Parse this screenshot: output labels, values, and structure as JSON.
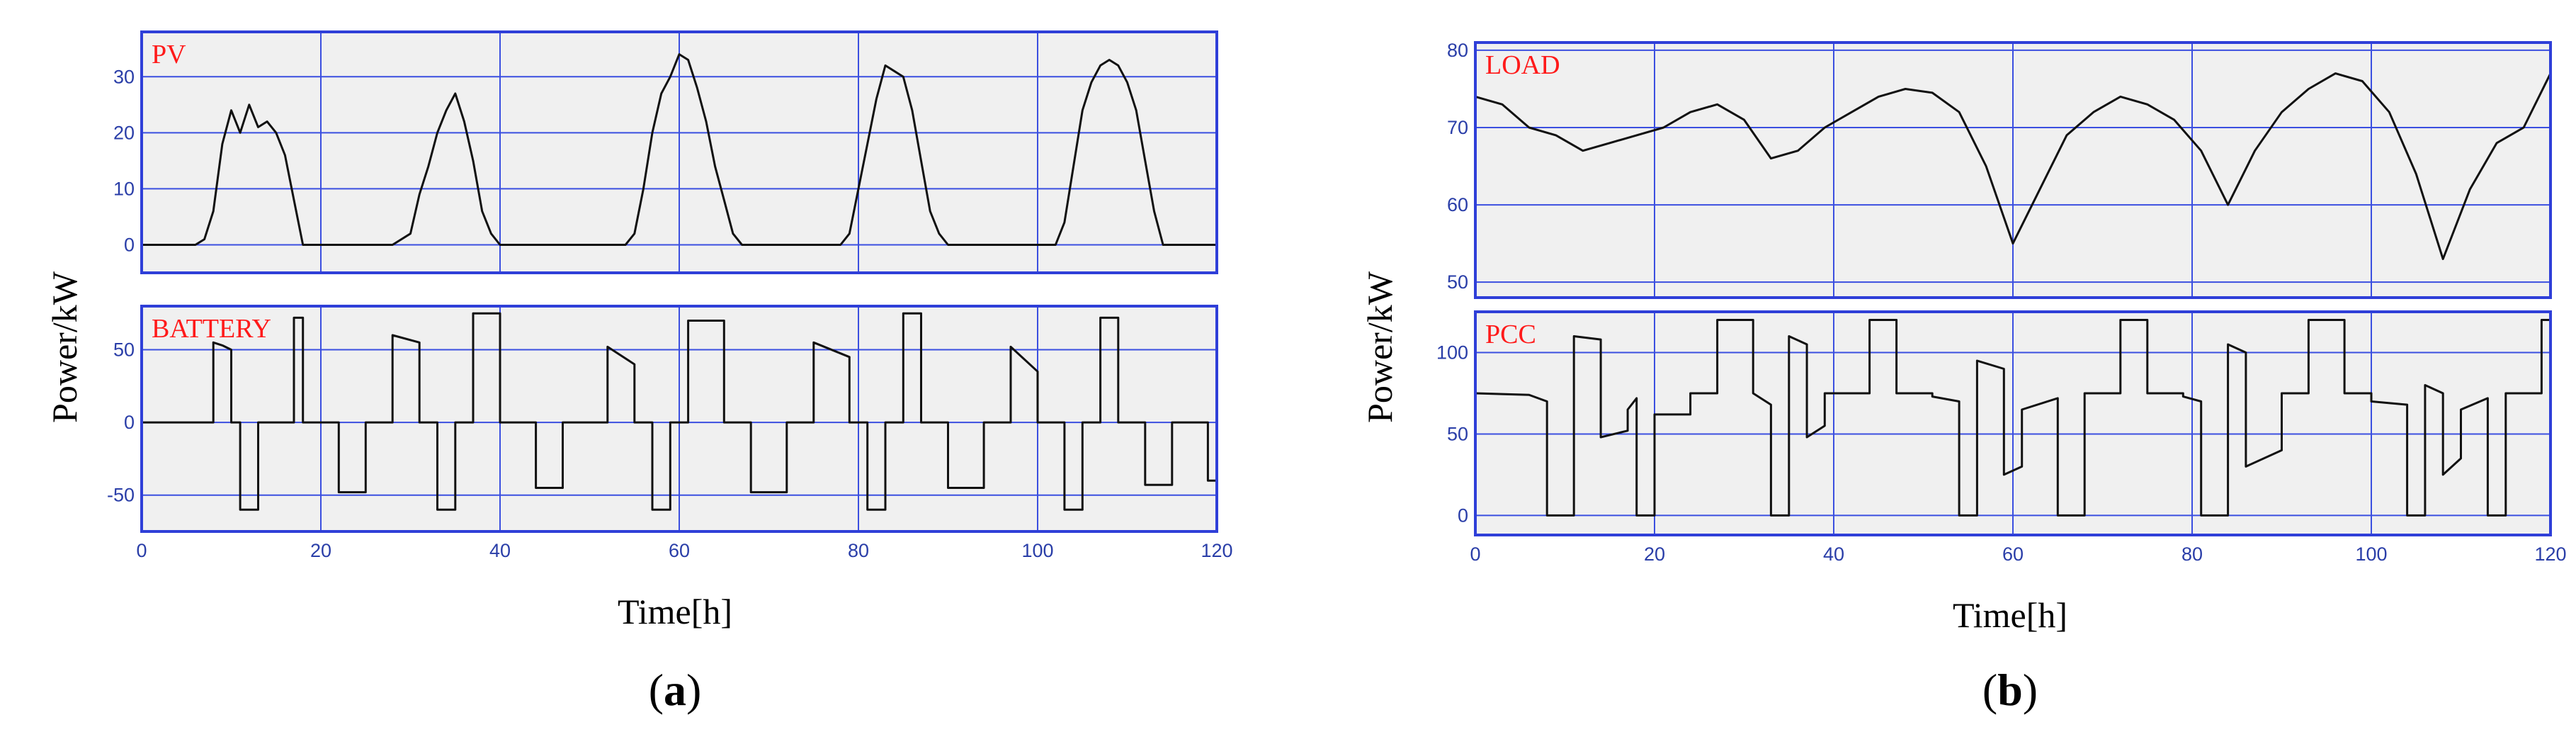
{
  "figure": {
    "panels": [
      {
        "id": "a",
        "label_open": "(",
        "label_letter": "a",
        "label_close": ")",
        "ylabel": "Power/kW",
        "xlabel": "Time[h]"
      },
      {
        "id": "b",
        "label_open": "(",
        "label_letter": "b",
        "label_close": ")",
        "ylabel": "Power/kW",
        "xlabel": "Time[h]"
      }
    ]
  },
  "colors": {
    "frame": "#2f3fd8",
    "grid": "#3b4fe0",
    "plot_bg": "#f0f0f0",
    "trace": "#111111",
    "label": "#ff1a1a",
    "tick": "#2a3ea8"
  },
  "chart_data": [
    {
      "type": "line",
      "panel": "a",
      "name": "PV",
      "xlim": [
        0,
        120
      ],
      "ylim": [
        -5,
        38
      ],
      "yticks": [
        0,
        10,
        20,
        30
      ],
      "xticks": [],
      "grid": true,
      "x": [
        0,
        6,
        7,
        8,
        9,
        10,
        11,
        12,
        13,
        14,
        15,
        16,
        17,
        18,
        20,
        28,
        30,
        31,
        32,
        33,
        34,
        35,
        36,
        37,
        38,
        39,
        40,
        41,
        42,
        43,
        52,
        54,
        55,
        56,
        57,
        58,
        59,
        60,
        61,
        62,
        63,
        64,
        65,
        66,
        67,
        76,
        78,
        79,
        80,
        81,
        82,
        83,
        84,
        85,
        86,
        87,
        88,
        89,
        90,
        91,
        100,
        102,
        103,
        104,
        105,
        106,
        107,
        108,
        109,
        110,
        111,
        112,
        113,
        114,
        120
      ],
      "y": [
        0,
        0,
        1,
        6,
        18,
        24,
        20,
        25,
        21,
        22,
        20,
        16,
        8,
        0,
        0,
        0,
        2,
        9,
        14,
        20,
        24,
        27,
        22,
        15,
        6,
        2,
        0,
        0,
        0,
        0,
        0,
        0,
        2,
        10,
        20,
        27,
        30,
        34,
        33,
        28,
        22,
        14,
        8,
        2,
        0,
        0,
        0,
        2,
        10,
        18,
        26,
        32,
        31,
        30,
        24,
        15,
        6,
        2,
        0,
        0,
        0,
        0,
        4,
        14,
        24,
        29,
        32,
        33,
        32,
        29,
        24,
        15,
        6,
        0,
        0
      ]
    },
    {
      "type": "line",
      "panel": "a",
      "name": "BATTERY",
      "xlim": [
        0,
        120
      ],
      "ylim": [
        -75,
        80
      ],
      "yticks": [
        -50,
        0,
        50
      ],
      "xticks": [
        0,
        20,
        40,
        60,
        80,
        100,
        120
      ],
      "grid": true,
      "x": [
        0,
        8,
        8,
        9,
        10,
        10,
        11,
        11,
        13,
        13,
        17,
        17,
        18,
        18,
        22,
        22,
        25,
        25,
        28,
        28,
        31,
        31,
        33,
        33,
        35,
        35,
        37,
        37,
        40,
        40,
        44,
        44,
        47,
        47,
        52,
        52,
        55,
        55,
        57,
        57,
        59,
        59,
        61,
        61,
        65,
        65,
        68,
        68,
        72,
        72,
        75,
        75,
        79,
        79,
        81,
        81,
        83,
        83,
        85,
        85,
        87,
        87,
        90,
        90,
        94,
        94,
        97,
        97,
        100,
        100,
        103,
        103,
        105,
        105,
        107,
        107,
        109,
        109,
        112,
        112,
        115,
        115,
        119,
        119,
        120
      ],
      "y": [
        0,
        0,
        55,
        53,
        50,
        0,
        0,
        -60,
        -60,
        0,
        0,
        72,
        72,
        0,
        0,
        -48,
        -48,
        0,
        0,
        60,
        55,
        0,
        0,
        -60,
        -60,
        0,
        0,
        75,
        75,
        0,
        0,
        -45,
        -45,
        0,
        0,
        52,
        40,
        0,
        0,
        -60,
        -60,
        0,
        0,
        70,
        70,
        0,
        0,
        -48,
        -48,
        0,
        0,
        55,
        45,
        0,
        0,
        -60,
        -60,
        0,
        0,
        75,
        75,
        0,
        0,
        -45,
        -45,
        0,
        0,
        52,
        35,
        0,
        0,
        -60,
        -60,
        0,
        0,
        72,
        72,
        0,
        0,
        -43,
        -43,
        0,
        0,
        -40,
        -40
      ]
    },
    {
      "type": "line",
      "panel": "b",
      "name": "LOAD",
      "xlim": [
        0,
        120
      ],
      "ylim": [
        48,
        81
      ],
      "yticks": [
        50,
        60,
        70,
        80
      ],
      "xticks": [],
      "grid": true,
      "x": [
        0,
        3,
        6,
        9,
        12,
        15,
        18,
        21,
        24,
        27,
        30,
        33,
        36,
        39,
        42,
        45,
        48,
        51,
        54,
        57,
        60,
        63,
        66,
        69,
        72,
        75,
        78,
        81,
        84,
        87,
        90,
        93,
        96,
        99,
        102,
        105,
        108,
        111,
        114,
        117,
        120
      ],
      "y": [
        74,
        73,
        70,
        69,
        67,
        68,
        69,
        70,
        72,
        73,
        71,
        66,
        67,
        70,
        72,
        74,
        75,
        74.5,
        72,
        65,
        55,
        62,
        69,
        72,
        74,
        73,
        71,
        67,
        60,
        67,
        72,
        75,
        77,
        76,
        72,
        64,
        53,
        62,
        68,
        70,
        77
      ]
    },
    {
      "type": "line",
      "panel": "b",
      "name": "PCC",
      "xlim": [
        0,
        120
      ],
      "ylim": [
        -12,
        125
      ],
      "yticks": [
        0,
        50,
        100
      ],
      "xticks": [
        0,
        20,
        40,
        60,
        80,
        100,
        120
      ],
      "grid": true,
      "x": [
        0,
        6,
        8,
        8,
        11,
        11,
        14,
        14,
        17,
        17,
        18,
        18,
        20,
        20,
        24,
        24,
        27,
        27,
        31,
        31,
        33,
        33,
        35,
        35,
        37,
        37,
        39,
        39,
        44,
        44,
        47,
        47,
        51,
        51,
        54,
        54,
        56,
        56,
        59,
        59,
        61,
        61,
        65,
        65,
        68,
        68,
        72,
        72,
        75,
        75,
        79,
        79,
        81,
        81,
        84,
        84,
        86,
        86,
        90,
        90,
        93,
        93,
        97,
        97,
        100,
        100,
        104,
        104,
        106,
        106,
        108,
        108,
        110,
        110,
        113,
        113,
        115,
        115,
        119,
        119,
        120
      ],
      "y": [
        75,
        74,
        70,
        0,
        0,
        110,
        108,
        48,
        52,
        65,
        72,
        0,
        0,
        62,
        62,
        75,
        75,
        120,
        120,
        75,
        68,
        0,
        0,
        110,
        105,
        48,
        55,
        75,
        75,
        120,
        120,
        75,
        75,
        73,
        70,
        0,
        0,
        95,
        90,
        25,
        30,
        65,
        72,
        0,
        0,
        75,
        75,
        120,
        120,
        75,
        75,
        73,
        70,
        0,
        0,
        105,
        100,
        30,
        40,
        75,
        75,
        120,
        120,
        75,
        75,
        70,
        68,
        0,
        0,
        80,
        75,
        25,
        35,
        65,
        72,
        0,
        0,
        75,
        75,
        120,
        120
      ]
    }
  ]
}
